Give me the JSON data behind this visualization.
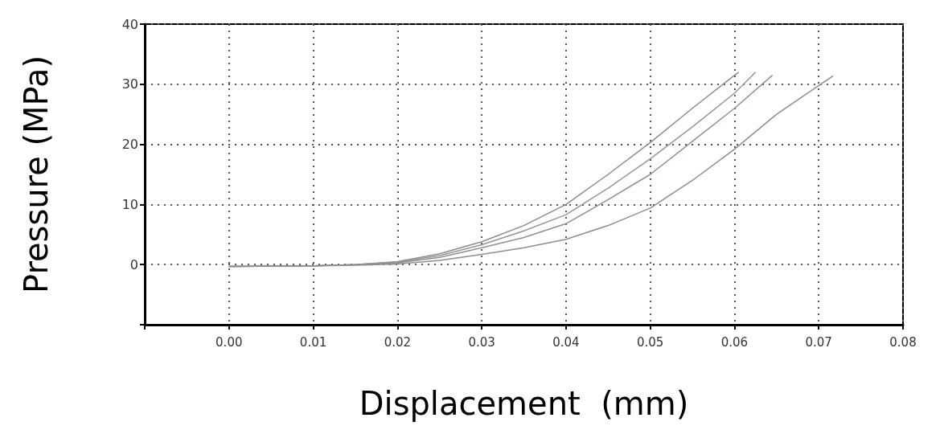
{
  "chart_data": {
    "type": "line",
    "xlabel": "Displacement  (mm)",
    "ylabel": "Pressure (MPa)",
    "xlim": [
      -0.01,
      0.08
    ],
    "xticks": [
      {
        "value": -0.01,
        "label": null
      },
      {
        "value": 0,
        "label": "0.00"
      },
      {
        "value": 0.01,
        "label": "0.01"
      },
      {
        "value": 0.02,
        "label": "0.02"
      },
      {
        "value": 0.03,
        "label": "0.03"
      },
      {
        "value": 0.04,
        "label": "0.04"
      },
      {
        "value": 0.05,
        "label": "0.05"
      },
      {
        "value": 0.06,
        "label": "0.06"
      },
      {
        "value": 0.07,
        "label": "0.07"
      },
      {
        "value": 0.08,
        "label": "0.08"
      }
    ],
    "ylim": [
      -10,
      40
    ],
    "yticks": [
      {
        "value": -10,
        "label": null
      },
      0,
      10,
      20,
      30,
      40
    ],
    "grid": true,
    "marker": "none",
    "line_style": "solid",
    "series": [
      {
        "color": "#8c8c8c",
        "x": [
          0,
          0.01,
          0.015,
          0.02,
          0.025,
          0.03,
          0.035,
          0.04,
          0.045,
          0.05,
          0.055,
          0.06,
          0.0605
        ],
        "values": [
          -0.3,
          -0.2,
          0,
          0.5,
          1.8,
          3.8,
          6.5,
          10,
          15,
          20.3,
          26,
          31.5,
          32
        ]
      },
      {
        "color": "#8c9a98",
        "x": [
          0,
          0.01,
          0.015,
          0.02,
          0.025,
          0.03,
          0.035,
          0.04,
          0.045,
          0.05,
          0.055,
          0.06,
          0.0625
        ],
        "values": [
          -0.3,
          -0.2,
          0,
          0.4,
          1.5,
          3.3,
          5.6,
          8.3,
          12.7,
          17.6,
          22.9,
          28.5,
          32
        ]
      },
      {
        "color": "#9a8c8c",
        "x": [
          0,
          0.01,
          0.015,
          0.02,
          0.025,
          0.03,
          0.035,
          0.04,
          0.045,
          0.05,
          0.055,
          0.06,
          0.0645
        ],
        "values": [
          -0.3,
          -0.2,
          0,
          0.3,
          1.2,
          2.8,
          4.5,
          6.8,
          10.8,
          15,
          20.5,
          26,
          31.5
        ]
      },
      {
        "color": "#8c8c9a",
        "x": [
          0,
          0.01,
          0.015,
          0.02,
          0.025,
          0.03,
          0.035,
          0.04,
          0.045,
          0.05,
          0.055,
          0.06,
          0.065,
          0.0717
        ],
        "values": [
          -0.3,
          -0.2,
          -0.1,
          0.1,
          0.7,
          1.7,
          2.8,
          4.2,
          6.5,
          9.4,
          14,
          19.2,
          25,
          31.4
        ]
      }
    ]
  }
}
